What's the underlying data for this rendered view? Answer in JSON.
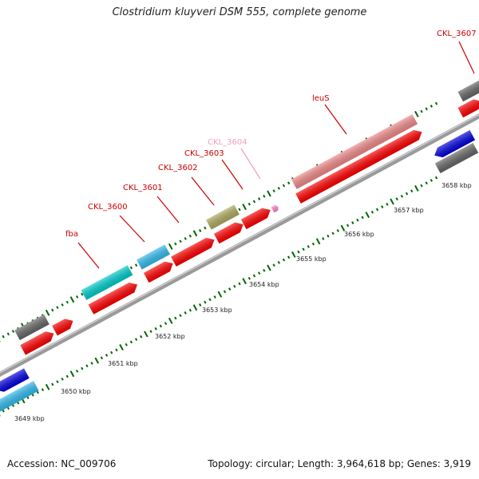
{
  "title": "Clostridium kluyveri DSM 555, complete genome",
  "footer": {
    "accession": "Accession: NC_009706",
    "topology": "Topology: circular; Length: 3,964,618 bp; Genes: 3,919"
  },
  "kbp_labels": [
    "3649 kbp",
    "3650 kbp",
    "3651 kbp",
    "3652 kbp",
    "3653 kbp",
    "3654 kbp",
    "3655 kbp",
    "3656 kbp",
    "3657 kbp",
    "3658 kbp"
  ],
  "gene_labels": [
    {
      "text": "fba",
      "color": "#cc0000"
    },
    {
      "text": "CKL_3600",
      "color": "#cc0000"
    },
    {
      "text": "CKL_3601",
      "color": "#cc0000"
    },
    {
      "text": "CKL_3602",
      "color": "#cc0000"
    },
    {
      "text": "CKL_3603",
      "color": "#cc0000"
    },
    {
      "text": "CKL_3604",
      "color": "#f0a0b4"
    },
    {
      "text": "leuS",
      "color": "#cc0000"
    },
    {
      "text": "CKL_3607",
      "color": "#cc0000"
    }
  ],
  "colors": {
    "backbone": "#9a9a9a",
    "cds_forward": "#ff0000",
    "rrna_like": "#00cccc",
    "blue": "#0000dd",
    "light_blue": "#33bbee",
    "grey": "#666666",
    "salmon": "#f08a8a",
    "olive": "#b0aa60",
    "pink": "#ff88cc",
    "tick": "#006600"
  }
}
